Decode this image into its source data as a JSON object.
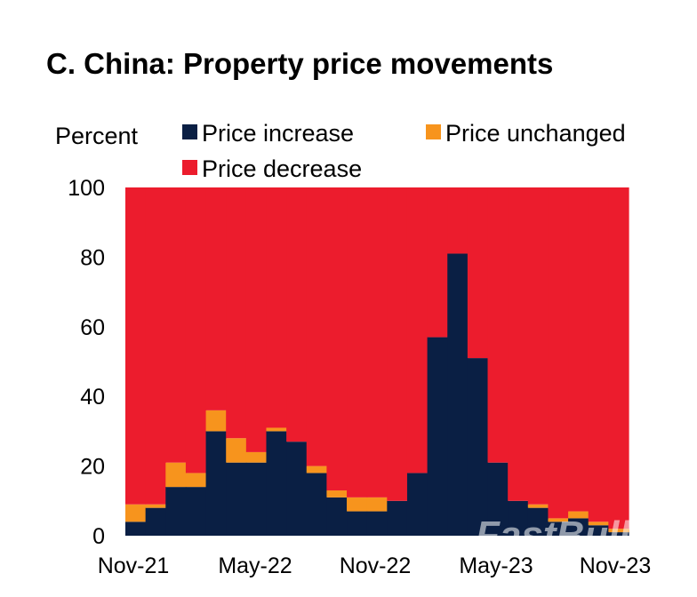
{
  "chart_data": {
    "type": "bar",
    "stacked": true,
    "title": "C. China: Property price movements",
    "ylabel": "Percent",
    "xlabel": "",
    "ylim": [
      0,
      100
    ],
    "yticks": [
      0,
      20,
      40,
      60,
      80,
      100
    ],
    "xtick_labels": [
      "Nov-21",
      "May-22",
      "Nov-22",
      "May-23",
      "Nov-23"
    ],
    "legend": [
      "Price increase",
      "Price unchanged",
      "Price decrease"
    ],
    "categories": [
      "Nov-21",
      "Dec-21",
      "Jan-22",
      "Feb-22",
      "Mar-22",
      "Apr-22",
      "May-22",
      "Jun-22",
      "Jul-22",
      "Aug-22",
      "Sep-22",
      "Oct-22",
      "Nov-22",
      "Dec-22",
      "Jan-23",
      "Feb-23",
      "Mar-23",
      "Apr-23",
      "May-23",
      "Jun-23",
      "Jul-23",
      "Aug-23",
      "Sep-23",
      "Oct-23",
      "Nov-23"
    ],
    "series": [
      {
        "name": "Price increase",
        "color": "#0a1f44",
        "values": [
          4,
          8,
          14,
          14,
          30,
          21,
          21,
          30,
          27,
          18,
          11,
          7,
          7,
          10,
          18,
          57,
          81,
          51,
          21,
          10,
          8,
          4,
          5,
          3,
          1
        ]
      },
      {
        "name": "Price unchanged",
        "color": "#f7941d",
        "values": [
          5,
          1,
          7,
          4,
          6,
          7,
          3,
          1,
          0,
          2,
          2,
          4,
          4,
          0,
          0,
          0,
          0,
          0,
          0,
          0,
          1,
          1,
          2,
          1,
          1
        ]
      },
      {
        "name": "Price decrease",
        "color": "#ec1c2d",
        "values": [
          91,
          91,
          79,
          82,
          64,
          72,
          76,
          69,
          73,
          80,
          87,
          89,
          89,
          90,
          82,
          43,
          19,
          49,
          79,
          90,
          91,
          95,
          93,
          96,
          98
        ]
      }
    ]
  },
  "watermark": "FastBull"
}
